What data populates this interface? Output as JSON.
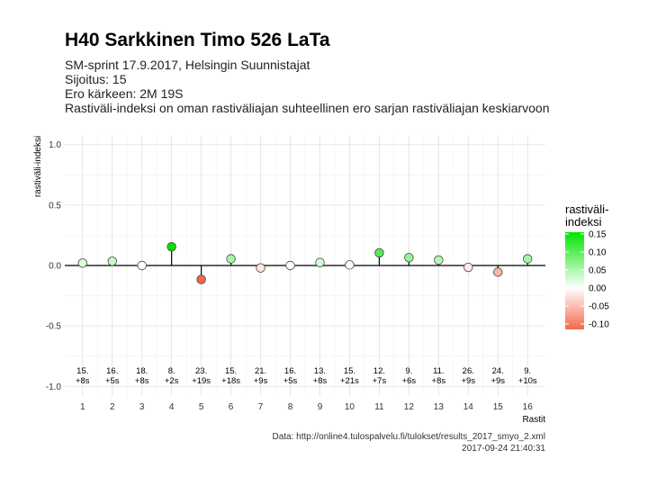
{
  "header": {
    "title": "H40 Sarkkinen Timo 526 LaTa",
    "subtitle_lines": [
      "SM-sprint 17.9.2017, Helsingin Suunnistajat",
      "Sijoitus: 15",
      "Ero kärkeen: 2M 19S",
      "Rastiväli-indeksi on oman rastiväliajan suhteellinen ero sarjan rastiväliajan keskiarvoon"
    ]
  },
  "caption": {
    "source": "Data: http://online4.tulospalvelu.fi/tulokset/results_2017_smyo_2.xml",
    "timestamp": "2017-09-24 21:40:31"
  },
  "chart_data": {
    "type": "scatter",
    "xlabel": "Rastit",
    "ylabel": "rastiväli-indeksi",
    "ylim": [
      -1.08,
      1.08
    ],
    "yticks": [
      -1.0,
      -0.5,
      0.0,
      0.5,
      1.0
    ],
    "ytick_labels": [
      "-1.0",
      "-0.5",
      "0.0",
      "0.5",
      "1.0"
    ],
    "x": [
      1,
      2,
      3,
      4,
      5,
      6,
      7,
      8,
      9,
      10,
      11,
      12,
      13,
      14,
      15,
      16
    ],
    "values": [
      0.02,
      0.035,
      0.0,
      0.155,
      -0.115,
      0.055,
      -0.02,
      0.0,
      0.025,
      0.005,
      0.105,
      0.065,
      0.045,
      -0.015,
      -0.055,
      0.055
    ],
    "annotations": [
      [
        "15.",
        "+8s"
      ],
      [
        "16.",
        "+5s"
      ],
      [
        "18.",
        "+8s"
      ],
      [
        "8.",
        "+2s"
      ],
      [
        "23.",
        "+19s"
      ],
      [
        "15.",
        "+18s"
      ],
      [
        "21.",
        "+9s"
      ],
      [
        "16.",
        "+5s"
      ],
      [
        "13.",
        "+8s"
      ],
      [
        "15.",
        "+21s"
      ],
      [
        "12.",
        "+7s"
      ],
      [
        "9.",
        "+6s"
      ],
      [
        "11.",
        "+8s"
      ],
      [
        "26.",
        "+9s"
      ],
      [
        "24.",
        "+9s"
      ],
      [
        "9.",
        "+10s"
      ]
    ],
    "grid": true,
    "legend": {
      "title_lines": [
        "rastiväli-",
        "indeksi"
      ],
      "placement": "right",
      "min": -0.115,
      "max": 0.155,
      "ticks": [
        0.15,
        0.1,
        0.05,
        0.0,
        -0.05,
        -0.1
      ],
      "tick_labels": [
        "0.15",
        "0.10",
        "0.05",
        "0.00",
        "-0.05",
        "-0.10"
      ],
      "color_low": "#f4694b",
      "color_mid": "#ffffff",
      "color_high": "#00e400"
    }
  }
}
